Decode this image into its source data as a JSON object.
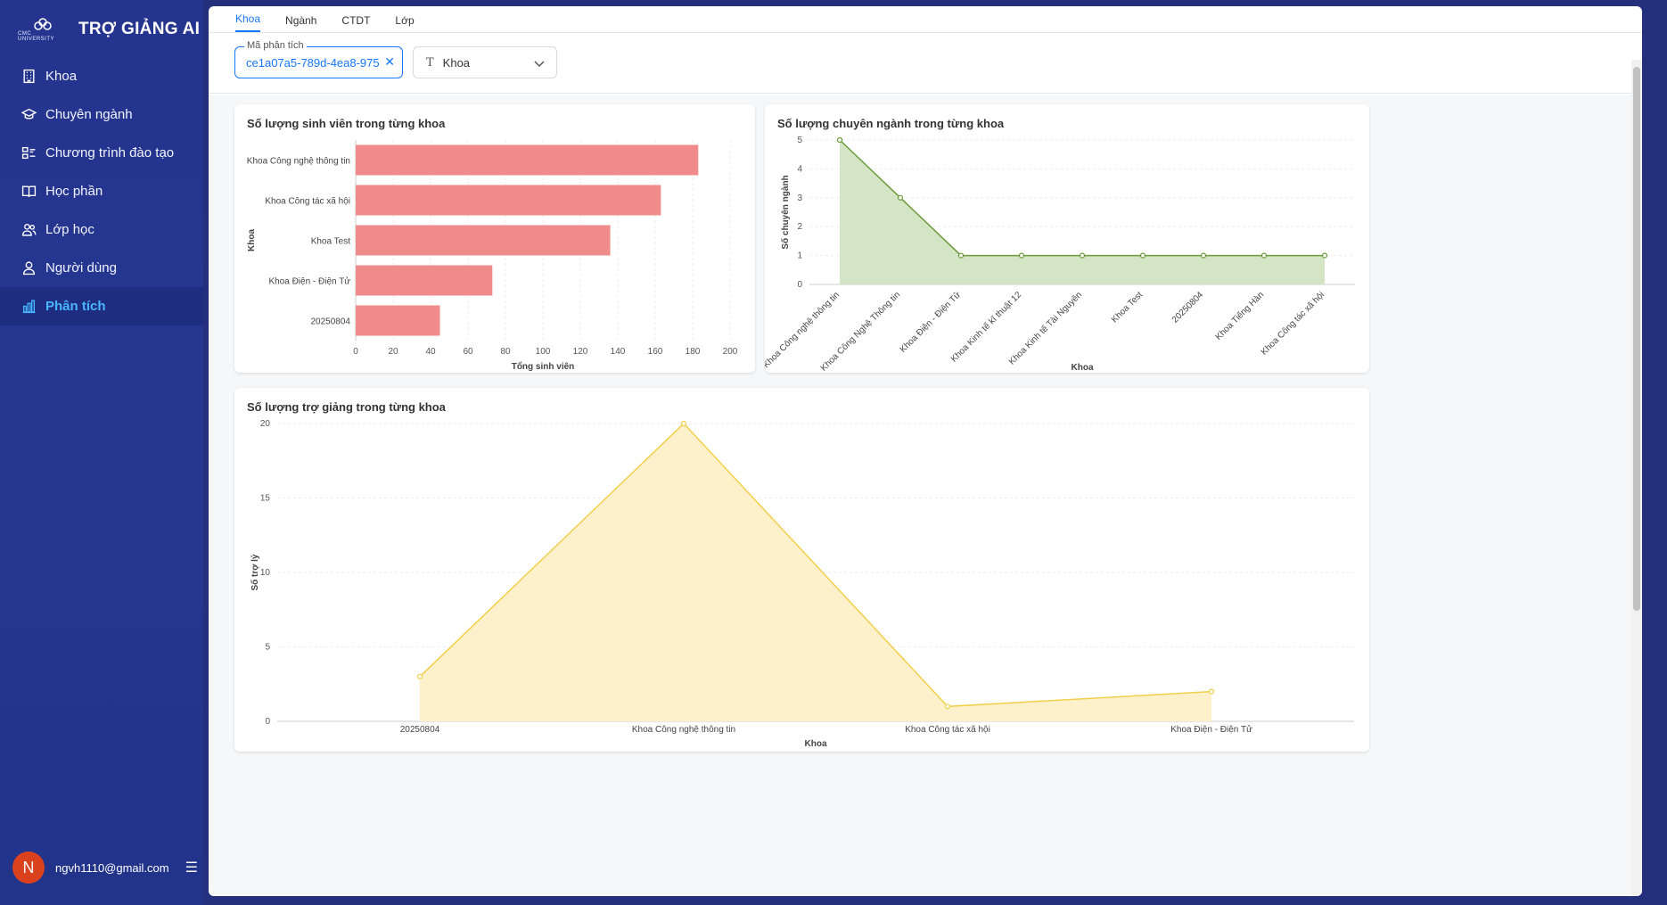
{
  "brand": {
    "title": "TRỢ GIẢNG AI",
    "logo_text": "CMC UNIVERSITY"
  },
  "sidebar": {
    "items": [
      {
        "label": "Khoa",
        "icon": "building-icon"
      },
      {
        "label": "Chuyên ngành",
        "icon": "graduation-cap-icon"
      },
      {
        "label": "Chương trình đào tạo",
        "icon": "program-icon"
      },
      {
        "label": "Học phần",
        "icon": "book-icon"
      },
      {
        "label": "Lớp học",
        "icon": "users-icon"
      },
      {
        "label": "Người dùng",
        "icon": "user-icon"
      },
      {
        "label": "Phân tích",
        "icon": "bar-chart-icon",
        "active": true
      }
    ]
  },
  "user": {
    "avatar_letter": "N",
    "email": "ngvh1110@gmail.com"
  },
  "tabs": [
    {
      "label": "Khoa",
      "active": true
    },
    {
      "label": "Ngành"
    },
    {
      "label": "CTDT"
    },
    {
      "label": "Lớp"
    }
  ],
  "filters": {
    "analysis_id_label": "Mã phân tích",
    "analysis_id_value": "ce1a07a5-789d-4ea8-975",
    "type_select_value": "Khoa"
  },
  "colors": {
    "bar": "#f08b8b",
    "green_line": "#6a9a3a",
    "green_fill": "#d3e5c4",
    "yellow_line": "#f2cf4a",
    "yellow_fill": "#fdf1cb",
    "accent": "#1677ff"
  },
  "chart_data": [
    {
      "type": "bar",
      "orientation": "horizontal",
      "title": "Số lượng sinh viên trong từng khoa",
      "categories": [
        "Khoa Công nghệ thông tin",
        "Khoa Công tác xã hội",
        "Khoa Test",
        "Khoa Điện - Điện Tử",
        "20250804"
      ],
      "values": [
        183,
        163,
        136,
        73,
        45
      ],
      "xlabel": "Tổng sinh viên",
      "ylabel": "Khoa",
      "xlim": [
        0,
        200
      ],
      "xticks": [
        0,
        20,
        40,
        60,
        80,
        100,
        120,
        140,
        160,
        180,
        200
      ]
    },
    {
      "type": "area",
      "title": "Số lượng chuyên ngành trong từng khoa",
      "categories": [
        "Khoa Công nghệ thông tin",
        "Khoa Công Nghệ Thông tin",
        "Khoa Điện - Điện Tử",
        "Khoa Kinh tế kĩ thuật 12",
        "Khoa Kinh tế Tài Nguyên",
        "Khoa Test",
        "20250804",
        "Khoa Tiếng Hàn",
        "Khoa Công tác xã hội"
      ],
      "values": [
        5,
        3,
        1,
        1,
        1,
        1,
        1,
        1,
        1
      ],
      "xlabel": "Khoa",
      "ylabel": "Số chuyên ngành",
      "ylim": [
        0,
        5
      ],
      "yticks": [
        0,
        1,
        2,
        3,
        4,
        5
      ]
    },
    {
      "type": "area",
      "title": "Số lượng trợ giảng trong từng khoa",
      "categories": [
        "20250804",
        "Khoa Công nghệ thông tin",
        "Khoa Công tác xã hội",
        "Khoa Điện - Điện Tử"
      ],
      "values": [
        3,
        20,
        1,
        2
      ],
      "xlabel": "Khoa",
      "ylabel": "Số trợ lý",
      "ylim": [
        0,
        20
      ],
      "yticks": [
        0,
        5,
        10,
        15,
        20
      ]
    }
  ]
}
